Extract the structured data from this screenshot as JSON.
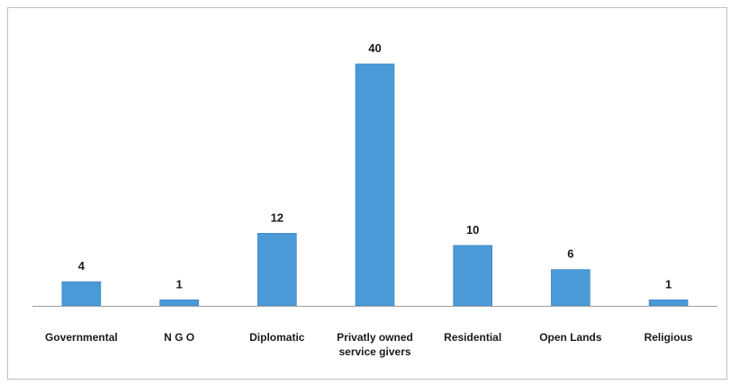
{
  "chart_data": {
    "type": "bar",
    "title": "",
    "xlabel": "",
    "ylabel": "",
    "categories": [
      [
        "Governmental"
      ],
      [
        "N G O"
      ],
      [
        "Diplomatic"
      ],
      [
        "Privatly owned",
        "service givers"
      ],
      [
        "Residential"
      ],
      [
        "Open Lands"
      ],
      [
        "Religious"
      ]
    ],
    "values": [
      4,
      1,
      12,
      40,
      10,
      6,
      1
    ],
    "ylim": [
      0,
      40
    ],
    "grid": false,
    "legend": "none",
    "colors": {
      "bar": "#4a9ad8",
      "bar_edge": "#3a7fc0",
      "axis": "#9e9e9e"
    }
  }
}
